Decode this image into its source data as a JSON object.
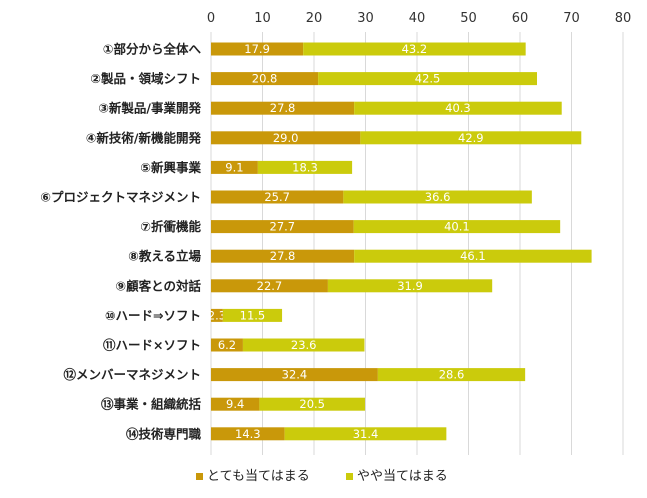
{
  "chart_data": {
    "type": "bar",
    "orientation": "horizontal",
    "stacked": true,
    "categories": [
      "①部分から全体へ",
      "②製品・領域シフト",
      "③新製品/事業開発",
      "④新技術/新機能開発",
      "⑤新興事業",
      "⑥プロジェクトマネジメント",
      "⑦折衝機能",
      "⑧教える立場",
      "⑨顧客との対話",
      "⑩ハード⇒ソフト",
      "⑪ハード×ソフト",
      "⑫メンバーマネジメント",
      "⑬事業・組織統括",
      "⑭技術専門職"
    ],
    "series": [
      {
        "name": "とても当てはまる",
        "color": "#C9980A",
        "values": [
          17.9,
          20.8,
          27.8,
          29.0,
          9.1,
          25.7,
          27.7,
          27.8,
          22.7,
          2.3,
          6.2,
          32.4,
          9.4,
          14.3
        ],
        "labels": [
          "17.9",
          "20.8",
          "27.8",
          "29.0",
          "9.1",
          "25.7",
          "27.7",
          "27.8",
          "22.7",
          "2.3",
          "6.2",
          "32.4",
          "9.4",
          "14.3"
        ]
      },
      {
        "name": "やや当てはまる",
        "color": "#CBCB0C",
        "values": [
          43.2,
          42.5,
          40.3,
          42.9,
          18.3,
          36.6,
          40.1,
          46.1,
          31.9,
          11.5,
          23.6,
          28.6,
          20.5,
          31.4
        ],
        "labels": [
          "43.2",
          "42.5",
          "40.3",
          "42.9",
          "18.3",
          "36.6",
          "40.1",
          "46.1",
          "31.9",
          "11.5",
          "23.6",
          "28.6",
          "20.5",
          "31.4"
        ]
      }
    ],
    "xlim": [
      0,
      80
    ],
    "xticks": [
      "0",
      "10",
      "20",
      "30",
      "40",
      "50",
      "60",
      "70",
      "80"
    ],
    "xaxis_position": "top",
    "grid": "vertical",
    "legend": "bottom",
    "gridline_color": "#D9D9D9"
  }
}
